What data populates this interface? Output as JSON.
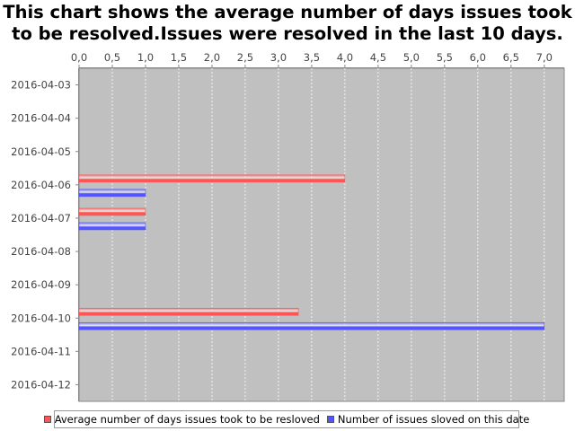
{
  "chart_data": {
    "type": "bar",
    "orientation": "horizontal",
    "title": "This chart shows the average number of days issues took to be resolved.Issues were resolved in the last 10 days.",
    "categories": [
      "2016-04-03",
      "2016-04-04",
      "2016-04-05",
      "2016-04-06",
      "2016-04-07",
      "2016-04-08",
      "2016-04-09",
      "2016-04-10",
      "2016-04-11",
      "2016-04-12"
    ],
    "series": [
      {
        "name": "Average number of days issues took to be resloved",
        "color": "#ff5555",
        "values": [
          null,
          null,
          null,
          4.0,
          1.0,
          null,
          null,
          3.3,
          null,
          null
        ]
      },
      {
        "name": "Number of issues sloved on this date",
        "color": "#5555ff",
        "values": [
          null,
          null,
          null,
          1.0,
          1.0,
          null,
          null,
          7.0,
          null,
          null
        ]
      }
    ],
    "xlim": [
      0,
      7.3
    ],
    "ticks": [
      "0,0",
      "0,5",
      "1,0",
      "1,5",
      "2,0",
      "2,5",
      "3,0",
      "3,5",
      "4,0",
      "4,5",
      "5,0",
      "5,5",
      "6,0",
      "6,5",
      "7,0"
    ],
    "value_axis_position": "top",
    "plot_background": "#c0c0c0",
    "grid": true,
    "legend_position": "bottom"
  }
}
